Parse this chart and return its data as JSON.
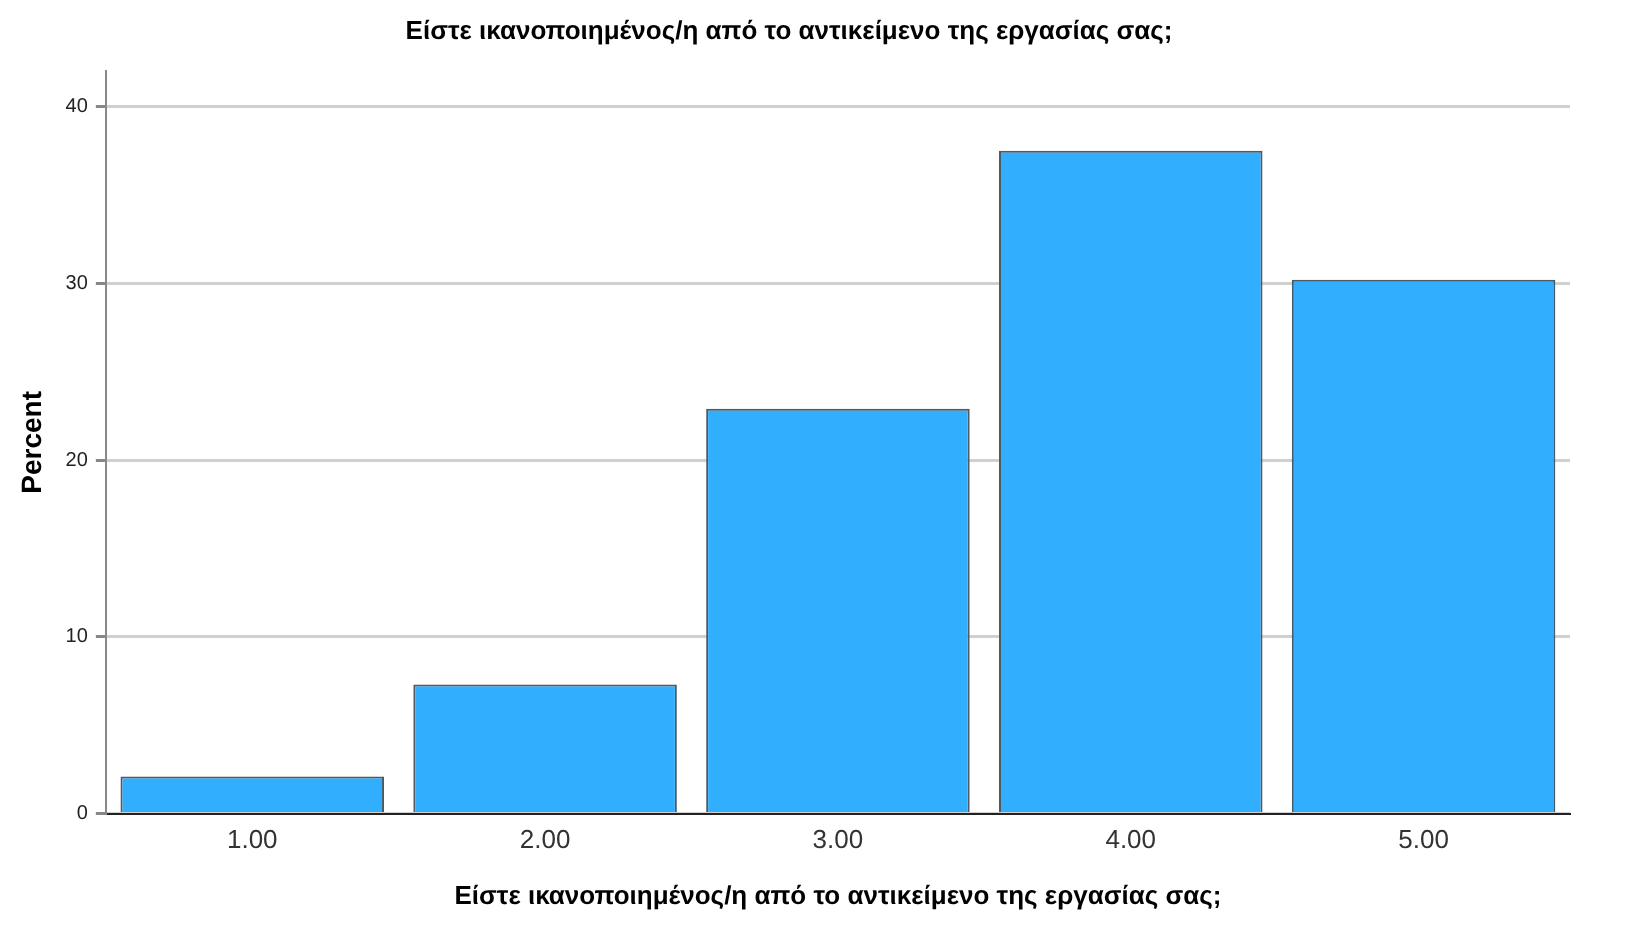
{
  "chart_data": {
    "type": "bar",
    "title": "Είστε ικανοποιημένος/η από το αντικείμενο της εργασίας σας;",
    "xlabel": "Είστε ικανοποιημένος/η από το αντικείμενο της εργασίας σας;",
    "ylabel": "Percent",
    "categories": [
      "1.00",
      "2.00",
      "3.00",
      "4.00",
      "5.00"
    ],
    "values": [
      2.1,
      7.3,
      22.9,
      37.5,
      30.2
    ],
    "color": "#31aefe",
    "ylim": [
      0,
      42
    ],
    "yticks": [
      0,
      10,
      20,
      30,
      40
    ],
    "grid": "y"
  }
}
